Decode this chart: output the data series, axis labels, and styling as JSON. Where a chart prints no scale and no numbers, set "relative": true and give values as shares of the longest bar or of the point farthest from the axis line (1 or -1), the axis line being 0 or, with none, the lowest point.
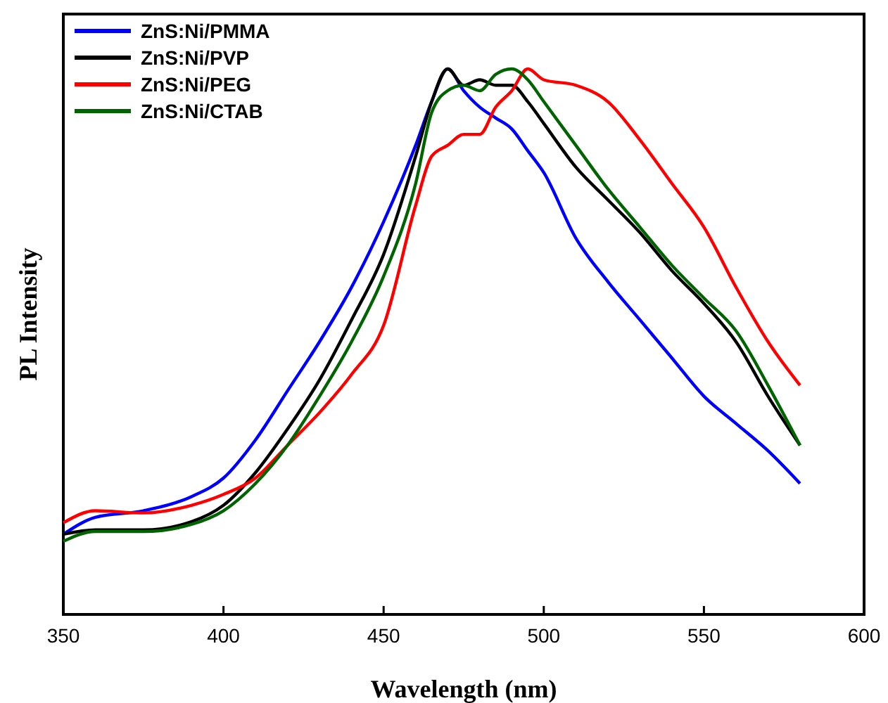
{
  "chart_data": {
    "type": "line",
    "relative": true,
    "xlabel": "Wavelength (nm)",
    "ylabel": "PL Intensity",
    "xlim": [
      350,
      600
    ],
    "xticks": [
      350,
      400,
      450,
      500,
      550,
      600
    ],
    "legend": "top left",
    "grid": false,
    "marker": "none",
    "line_style": "solid",
    "x": [
      350,
      360,
      375,
      390,
      400,
      410,
      420,
      430,
      440,
      450,
      460,
      465,
      470,
      475,
      480,
      485,
      490,
      495,
      500,
      510,
      520,
      530,
      540,
      550,
      560,
      570,
      580
    ],
    "series": [
      {
        "name": "ZnS:Ni/PMMA",
        "color": "#0000ff",
        "values": [
          0.147,
          0.178,
          0.19,
          0.216,
          0.25,
          0.32,
          0.41,
          0.5,
          0.6,
          0.72,
          0.86,
          0.94,
          1.0,
          0.96,
          0.93,
          0.91,
          0.89,
          0.85,
          0.81,
          0.69,
          0.61,
          0.54,
          0.47,
          0.4,
          0.35,
          0.3,
          0.24
        ]
      },
      {
        "name": "ZnS:Ni/PVP",
        "color": "#000000",
        "values": [
          0.147,
          0.155,
          0.155,
          0.17,
          0.2,
          0.26,
          0.34,
          0.43,
          0.54,
          0.66,
          0.84,
          0.94,
          1.0,
          0.97,
          0.98,
          0.97,
          0.97,
          0.94,
          0.9,
          0.82,
          0.76,
          0.7,
          0.63,
          0.57,
          0.5,
          0.4,
          0.31
        ]
      },
      {
        "name": "ZnS:Ni/PEG",
        "color": "#ff0000",
        "values": [
          0.168,
          0.19,
          0.186,
          0.2,
          0.22,
          0.25,
          0.31,
          0.37,
          0.44,
          0.53,
          0.75,
          0.84,
          0.86,
          0.88,
          0.88,
          0.93,
          0.96,
          1.0,
          0.98,
          0.97,
          0.94,
          0.87,
          0.79,
          0.71,
          0.6,
          0.5,
          0.42
        ]
      },
      {
        "name": "ZnS:Ni/CTAB",
        "color": "#006400",
        "values": [
          0.134,
          0.152,
          0.152,
          0.165,
          0.19,
          0.24,
          0.31,
          0.4,
          0.5,
          0.62,
          0.79,
          0.92,
          0.96,
          0.97,
          0.96,
          0.99,
          1.0,
          0.98,
          0.94,
          0.86,
          0.78,
          0.71,
          0.64,
          0.58,
          0.52,
          0.42,
          0.31
        ]
      }
    ]
  }
}
